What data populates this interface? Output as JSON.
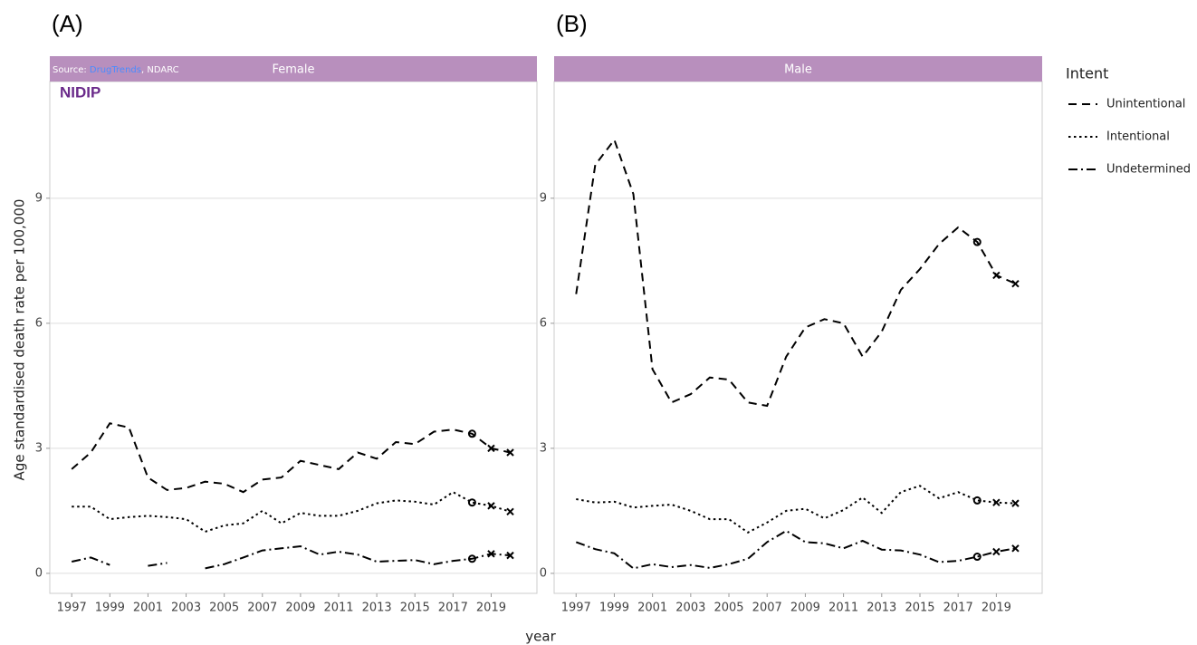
{
  "chart_data": [
    {
      "type": "line",
      "label": "(A)",
      "title": "Female",
      "x": [
        1997,
        1998,
        1999,
        2000,
        2001,
        2002,
        2003,
        2004,
        2005,
        2006,
        2007,
        2008,
        2009,
        2010,
        2011,
        2012,
        2013,
        2014,
        2015,
        2016,
        2017,
        2018,
        2019,
        2020
      ],
      "series": [
        {
          "name": "Unintentional",
          "color": "#000000",
          "dash": "dashed",
          "values": [
            2.5,
            2.9,
            3.6,
            3.5,
            2.3,
            2.0,
            2.05,
            2.2,
            2.15,
            1.95,
            2.25,
            2.3,
            2.7,
            2.6,
            2.5,
            2.9,
            2.75,
            3.15,
            3.1,
            3.4,
            3.45,
            3.35,
            3.0,
            2.9
          ]
        },
        {
          "name": "Intentional",
          "color": "#000000",
          "dash": "dotted",
          "values": [
            1.6,
            1.6,
            1.3,
            1.35,
            1.38,
            1.35,
            1.3,
            1.0,
            1.15,
            1.2,
            1.5,
            1.2,
            1.45,
            1.38,
            1.38,
            1.5,
            1.68,
            1.75,
            1.72,
            1.65,
            1.95,
            1.7,
            1.62,
            1.48
          ]
        },
        {
          "name": "Undetermined",
          "color": "#000000",
          "dash": "dashdot",
          "values": [
            0.28,
            0.38,
            0.2,
            null,
            0.18,
            0.25,
            null,
            0.12,
            0.22,
            0.38,
            0.55,
            0.6,
            0.65,
            0.45,
            0.52,
            0.45,
            0.28,
            0.3,
            0.32,
            0.22,
            0.3,
            0.35,
            0.47,
            0.43
          ]
        }
      ],
      "markers": [
        {
          "x": 2018,
          "shape": "circle"
        },
        {
          "x": 2019,
          "shape": "cross"
        },
        {
          "x": 2020,
          "shape": "cross"
        }
      ],
      "xlim": [
        1995.85,
        2021.4
      ],
      "xticks": [
        1997,
        1999,
        2001,
        2003,
        2005,
        2007,
        2009,
        2011,
        2013,
        2015,
        2017,
        2019
      ],
      "ylim": [
        -0.48,
        11.8
      ],
      "yticks": [
        0,
        3,
        6,
        9
      ],
      "grid": true
    },
    {
      "type": "line",
      "label": "(B)",
      "title": "Male",
      "x": [
        1997,
        1998,
        1999,
        2000,
        2001,
        2002,
        2003,
        2004,
        2005,
        2006,
        2007,
        2008,
        2009,
        2010,
        2011,
        2012,
        2013,
        2014,
        2015,
        2016,
        2017,
        2018,
        2019,
        2020
      ],
      "series": [
        {
          "color": "#000000",
          "dash": "dashed",
          "values": [
            6.7,
            9.8,
            10.4,
            9.1,
            4.9,
            4.1,
            4.3,
            4.7,
            4.65,
            4.1,
            4.02,
            5.2,
            5.9,
            6.1,
            6.0,
            5.2,
            5.8,
            6.8,
            7.3,
            7.9,
            8.3,
            7.95,
            7.15,
            6.95
          ]
        },
        {
          "color": "#000000",
          "dash": "dotted",
          "values": [
            1.78,
            1.7,
            1.72,
            1.58,
            1.62,
            1.65,
            1.5,
            1.3,
            1.3,
            0.98,
            1.22,
            1.5,
            1.55,
            1.32,
            1.52,
            1.82,
            1.45,
            1.95,
            2.1,
            1.8,
            1.95,
            1.75,
            1.7,
            1.68
          ]
        },
        {
          "color": "#000000",
          "dash": "dashdot",
          "values": [
            0.75,
            0.58,
            0.48,
            0.12,
            0.22,
            0.15,
            0.2,
            0.13,
            0.22,
            0.35,
            0.75,
            1.02,
            0.75,
            0.72,
            0.6,
            0.78,
            0.57,
            0.55,
            0.45,
            0.27,
            0.3,
            0.4,
            0.52,
            0.6
          ]
        }
      ],
      "markers": [
        {
          "x": 2018,
          "shape": "circle"
        },
        {
          "x": 2019,
          "shape": "cross"
        },
        {
          "x": 2020,
          "shape": "cross"
        }
      ],
      "xlim": [
        1995.85,
        2021.4
      ],
      "xticks": [
        1997,
        1999,
        2001,
        2003,
        2005,
        2007,
        2009,
        2011,
        2013,
        2015,
        2017,
        2019
      ],
      "ylim": [
        -0.48,
        11.8
      ],
      "yticks": [
        0,
        3,
        6,
        9
      ],
      "grid": true
    }
  ],
  "legend_title": "Intent",
  "y_label": "Age standardised death rate per 100,000",
  "x_label": "year",
  "source": {
    "prefix": "Source: ",
    "link": "DrugTrends",
    "suffix": ", NDARC"
  },
  "logo": "NIDIP"
}
